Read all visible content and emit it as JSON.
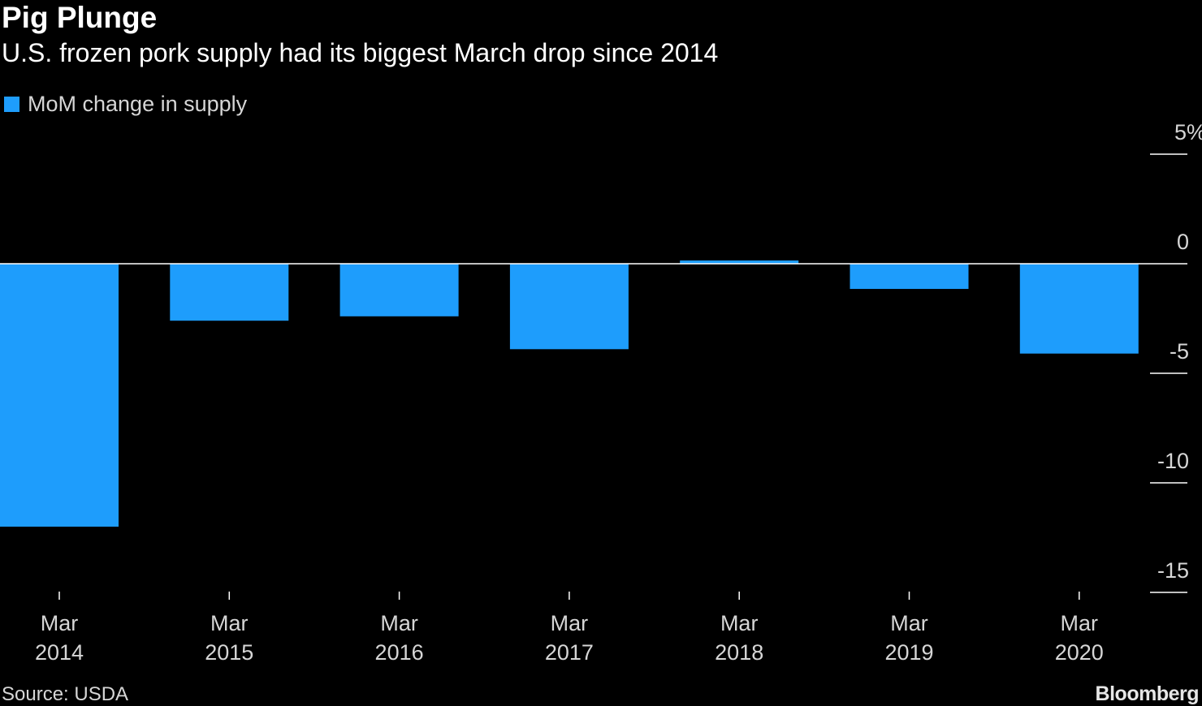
{
  "header": {
    "title": "Pig Plunge",
    "subtitle": "U.S. frozen pork supply had its biggest March drop since 2014"
  },
  "footer": {
    "source": "Source: USDA",
    "brand": "Bloomberg"
  },
  "colors": {
    "bar": "#1e9dfc",
    "background": "#000000",
    "text": "#ffffff",
    "muted_text": "#d6d6d6",
    "zero_line": "#ffffff"
  },
  "chart_data": {
    "type": "bar",
    "categories": [
      [
        "Mar",
        "2014"
      ],
      [
        "Mar",
        "2015"
      ],
      [
        "Mar",
        "2016"
      ],
      [
        "Mar",
        "2017"
      ],
      [
        "Mar",
        "2018"
      ],
      [
        "Mar",
        "2019"
      ],
      [
        "Mar",
        "2020"
      ]
    ],
    "series": [
      {
        "name": "MoM change in supply",
        "values": [
          -12.0,
          -2.6,
          -2.4,
          -3.9,
          0.15,
          -1.15,
          -4.1
        ]
      }
    ],
    "y_ticks": [
      5,
      0,
      -5,
      -10,
      -15
    ],
    "y_tick_labels": [
      "5%",
      "0",
      "-5",
      "-10",
      "-15"
    ],
    "ylim": [
      -15,
      5
    ],
    "axis_position": "right",
    "legend_position": "top-left",
    "grid": false
  }
}
